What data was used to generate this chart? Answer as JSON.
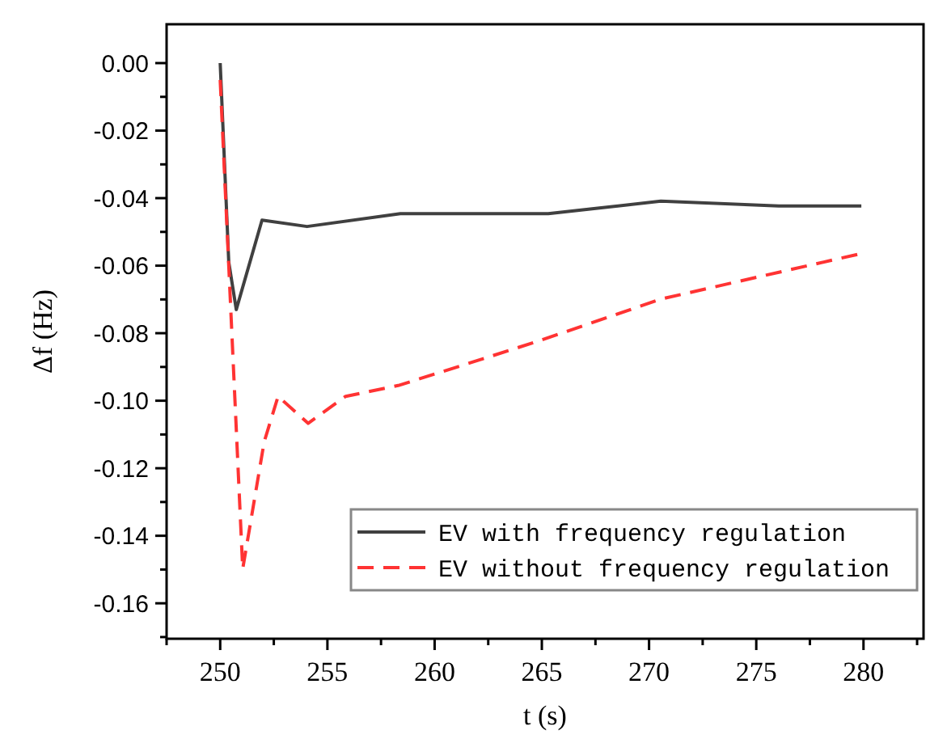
{
  "chart_data": {
    "type": "line",
    "xlabel": "t (s)",
    "ylabel": "Δf (Hz)",
    "xlim": [
      247.5,
      282.8
    ],
    "ylim": [
      -0.1705,
      0.0115
    ],
    "xticks": [
      {
        "value": 247.5,
        "label": null
      },
      250,
      {
        "value": 252.5,
        "label": null
      },
      255,
      {
        "value": 257.5,
        "label": null
      },
      260,
      {
        "value": 262.5,
        "label": null
      },
      265,
      {
        "value": 267.5,
        "label": null
      },
      270,
      {
        "value": 272.5,
        "label": null
      },
      275,
      {
        "value": 277.5,
        "label": null
      },
      280,
      {
        "value": 282.5,
        "label": null
      }
    ],
    "yticks": [
      {
        "value": 0,
        "label": "0.00"
      },
      {
        "value": -0.01,
        "label": null
      },
      {
        "value": -0.02,
        "label": "-0.02"
      },
      {
        "value": -0.03,
        "label": null
      },
      {
        "value": -0.04,
        "label": "-0.04"
      },
      {
        "value": -0.05,
        "label": null
      },
      {
        "value": -0.06,
        "label": "-0.06"
      },
      {
        "value": -0.07,
        "label": null
      },
      {
        "value": -0.08,
        "label": "-0.08"
      },
      {
        "value": -0.09,
        "label": null
      },
      {
        "value": -0.1,
        "label": "-0.10"
      },
      {
        "value": -0.11,
        "label": null
      },
      {
        "value": -0.12,
        "label": "-0.12"
      },
      {
        "value": -0.13,
        "label": null
      },
      {
        "value": -0.14,
        "label": "-0.14"
      },
      {
        "value": -0.15,
        "label": null
      },
      {
        "value": -0.16,
        "label": "-0.16"
      },
      {
        "value": -0.17,
        "label": null
      }
    ],
    "grid": false,
    "legend": "bottom right",
    "marker": "none",
    "series": [
      {
        "name": "EV with frequency regulation",
        "color": "#404040",
        "line_style": "solid",
        "x": [
          250,
          250.4,
          250.75,
          251.95,
          254.05,
          258.4,
          265.3,
          270.55,
          276.05,
          279.9
        ],
        "values": [
          0,
          -0.059,
          -0.073,
          -0.0465,
          -0.0484,
          -0.0446,
          -0.0446,
          -0.0409,
          -0.0423,
          -0.0423
        ]
      },
      {
        "name": "EV without frequency regulation",
        "color": "#ff3333",
        "line_style": "dashed",
        "x": [
          250,
          251.05,
          252.05,
          252.7,
          254.1,
          255.85,
          258.3,
          262.3,
          265,
          270.55,
          279.9
        ],
        "values": [
          -0.005,
          -0.1498,
          -0.1122,
          -0.0987,
          -0.1067,
          -0.0987,
          -0.0955,
          -0.0875,
          -0.082,
          -0.0699,
          -0.0564
        ]
      }
    ]
  }
}
